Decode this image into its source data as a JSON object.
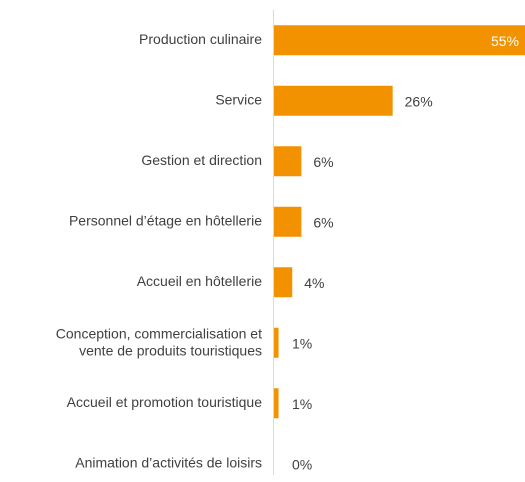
{
  "chart_data": {
    "type": "barh",
    "categories": [
      "Production culinaire",
      "Service",
      "Gestion et direction",
      "Personnel d’étage en hôtellerie",
      "Accueil en hôtellerie",
      "Conception, commercialisation et\nvente de produits touristiques",
      "Accueil et promotion touristique",
      "Animation d’activités de loisirs"
    ],
    "values": [
      55,
      26,
      6,
      6,
      4,
      1,
      1,
      0
    ],
    "value_labels": [
      "55%",
      "26%",
      "6%",
      "6%",
      "4%",
      "1%",
      "1%",
      "0%"
    ],
    "color": "#f39200"
  }
}
